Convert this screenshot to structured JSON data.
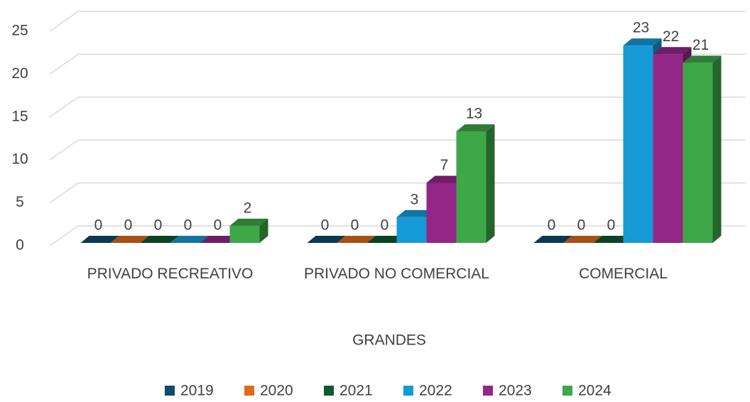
{
  "chart_data": {
    "type": "bar3d",
    "x_label": "GRANDES",
    "categories": [
      "PRIVADO RECREATIVO",
      "PRIVADO NO COMERCIAL",
      "COMERCIAL"
    ],
    "series": [
      {
        "name": "2019",
        "color": "#0f4c6e",
        "values": [
          0,
          0,
          0
        ]
      },
      {
        "name": "2020",
        "color": "#e0691c",
        "values": [
          0,
          0,
          0
        ]
      },
      {
        "name": "2021",
        "color": "#105a2f",
        "values": [
          0,
          0,
          0
        ]
      },
      {
        "name": "2022",
        "color": "#169ad6",
        "values": [
          0,
          3,
          23
        ]
      },
      {
        "name": "2023",
        "color": "#942688",
        "values": [
          0,
          7,
          22
        ]
      },
      {
        "name": "2024",
        "color": "#3ea748",
        "values": [
          2,
          13,
          21
        ]
      }
    ],
    "ylim": [
      0,
      25
    ],
    "yticks": [
      0,
      5,
      10,
      15,
      20,
      25
    ],
    "grid": true,
    "legend": "bottom"
  }
}
